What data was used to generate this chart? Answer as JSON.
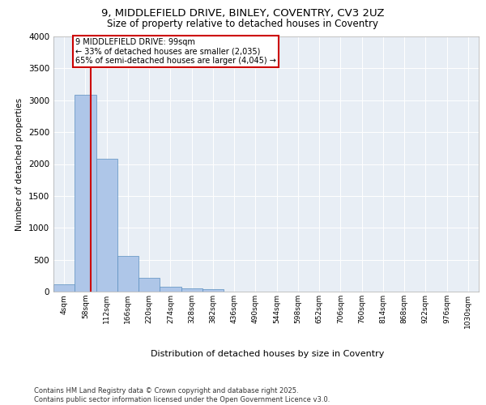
{
  "title_line1": "9, MIDDLEFIELD DRIVE, BINLEY, COVENTRY, CV3 2UZ",
  "title_line2": "Size of property relative to detached houses in Coventry",
  "xlabel": "Distribution of detached houses by size in Coventry",
  "ylabel": "Number of detached properties",
  "footer_line1": "Contains HM Land Registry data © Crown copyright and database right 2025.",
  "footer_line2": "Contains public sector information licensed under the Open Government Licence v3.0.",
  "property_label": "9 MIDDLEFIELD DRIVE: 99sqm",
  "annotation_line1": "← 33% of detached houses are smaller (2,035)",
  "annotation_line2": "65% of semi-detached houses are larger (4,045) →",
  "property_value": 99,
  "bin_edges": [
    4,
    58,
    112,
    166,
    220,
    274,
    328,
    382,
    436,
    490,
    544,
    598,
    652,
    706,
    760,
    814,
    868,
    922,
    976,
    1030,
    1084
  ],
  "bar_values": [
    120,
    3080,
    2080,
    560,
    220,
    80,
    50,
    40,
    0,
    0,
    0,
    0,
    0,
    0,
    0,
    0,
    0,
    0,
    0,
    0
  ],
  "bar_color": "#aec6e8",
  "bar_edge_color": "#5a8fc0",
  "vline_color": "#cc0000",
  "vline_x": 99,
  "annotation_box_edge_color": "#cc0000",
  "background_color": "#e8eef5",
  "ylim": [
    0,
    4000
  ],
  "yticks": [
    0,
    500,
    1000,
    1500,
    2000,
    2500,
    3000,
    3500,
    4000
  ]
}
